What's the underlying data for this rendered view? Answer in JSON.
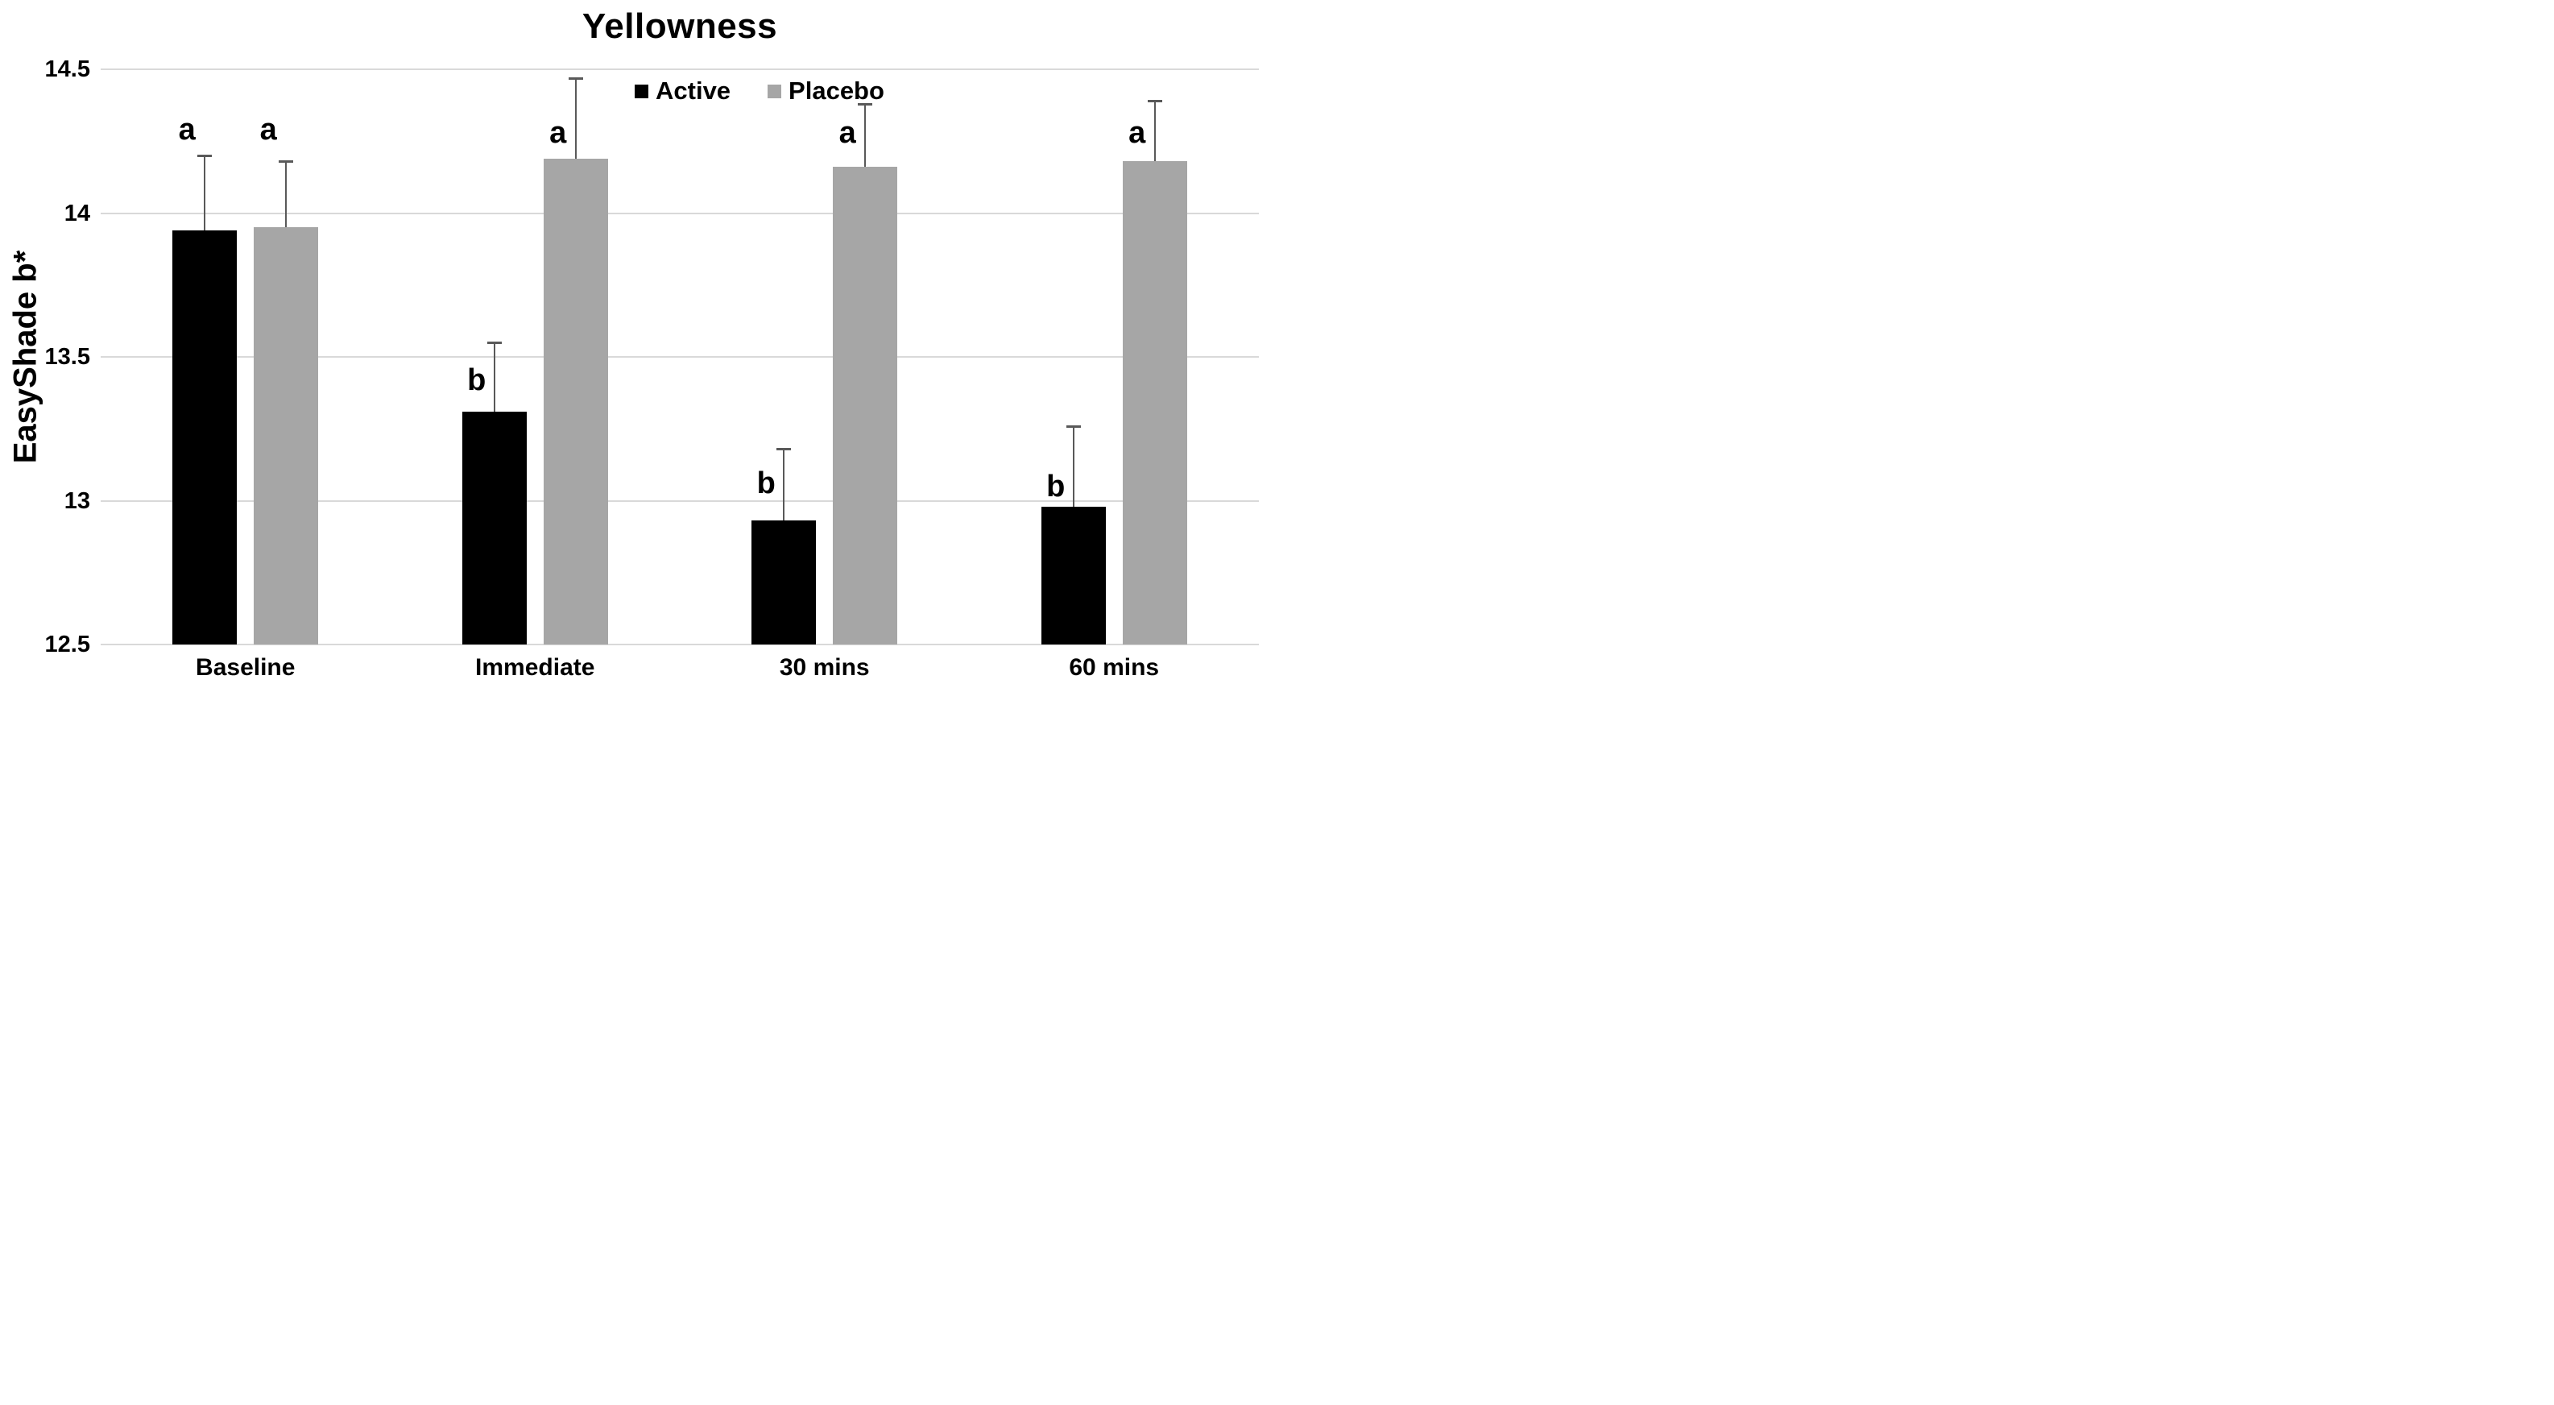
{
  "title": "Yellowness",
  "y_axis": {
    "label": "EasyShade b*",
    "min": 12.5,
    "max": 14.5,
    "tick_step": 0.5
  },
  "x_axis": {
    "categories": [
      "Baseline",
      "Immediate",
      "30 mins",
      "60 mins"
    ]
  },
  "legend": {
    "position": "top-center",
    "items": [
      "Active",
      "Placebo"
    ]
  },
  "colors": {
    "active_bar": "#000000",
    "placebo_bar": "#a6a6a6",
    "gridline": "#d9d9d9",
    "error_bar": "#595959",
    "text": "#000000",
    "background": "#ffffff"
  },
  "chart_data": {
    "type": "bar",
    "title": "Yellowness",
    "xlabel": "",
    "ylabel": "EasyShade b*",
    "ylim": [
      12.5,
      14.5
    ],
    "grid": true,
    "legend_position": "top-center",
    "categories": [
      "Baseline",
      "Immediate",
      "30 mins",
      "60 mins"
    ],
    "yticks": [
      {
        "label": "12.5",
        "value": 12.5
      },
      {
        "label": "13",
        "value": 13.0
      },
      {
        "label": "13.5",
        "value": 13.5
      },
      {
        "label": "14",
        "value": 14.0
      },
      {
        "label": "14.5",
        "value": 14.5
      }
    ],
    "series": [
      {
        "name": "Active",
        "color": "#000000",
        "values": [
          13.94,
          13.31,
          12.93,
          12.98
        ],
        "error_tops": [
          14.2,
          13.55,
          13.18,
          13.26
        ],
        "sig_letters": [
          "a",
          "b",
          "b",
          "b"
        ],
        "sig_letter_values": [
          14.29,
          13.42,
          13.06,
          13.05
        ]
      },
      {
        "name": "Placebo",
        "color": "#a6a6a6",
        "values": [
          13.95,
          14.19,
          14.16,
          14.18
        ],
        "error_tops": [
          14.18,
          14.47,
          14.38,
          14.39
        ],
        "sig_letters": [
          "a",
          "a",
          "a",
          "a"
        ],
        "sig_letter_values": [
          14.29,
          14.28,
          14.28,
          14.28
        ]
      }
    ]
  }
}
